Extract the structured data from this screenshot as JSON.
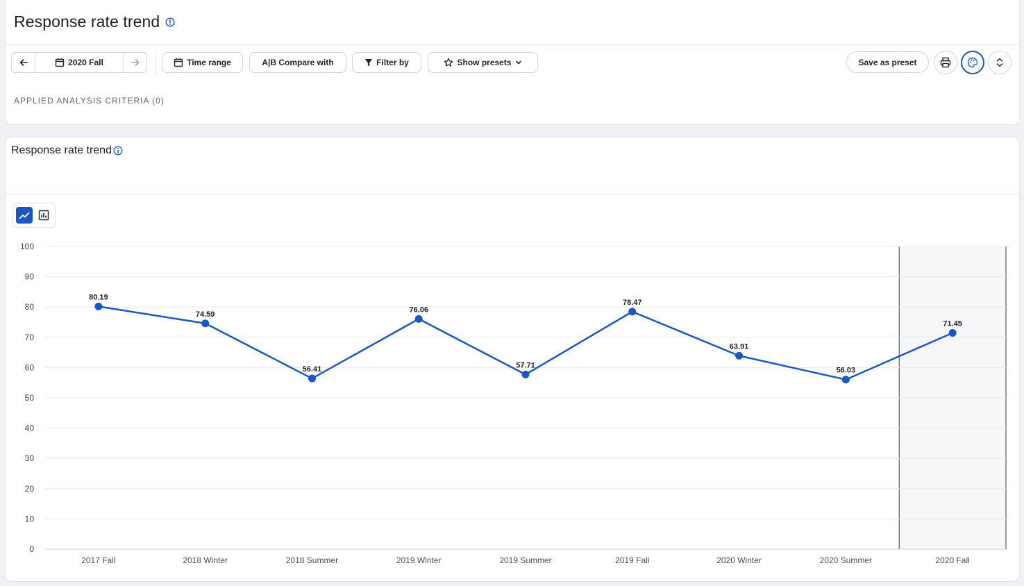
{
  "header": {
    "title": "Response rate trend"
  },
  "toolbar": {
    "period_label": "2020 Fall",
    "time_range_label": "Time range",
    "compare_label": "A|B Compare with",
    "filter_label": "Filter by",
    "presets_label": "Show presets",
    "save_preset_label": "Save as preset"
  },
  "criteria": {
    "label": "APPLIED ANALYSIS CRITERIA (0)"
  },
  "chart_card": {
    "title": "Response rate trend"
  },
  "icons": {
    "info": "info-icon",
    "back": "arrow-left-icon",
    "forward": "arrow-right-icon",
    "calendar": "calendar-icon",
    "filter": "filter-icon",
    "star": "star-icon",
    "chevron": "chevron-down-icon",
    "print": "print-icon",
    "palette": "palette-icon",
    "expand": "expand-collapse-icon",
    "line_chart": "line-chart-icon",
    "bar_chart": "bar-chart-icon"
  },
  "colors": {
    "accent": "#1a56c4",
    "highlight_fill": "#f6f7f9"
  },
  "chart_data": {
    "type": "line",
    "categories": [
      "2017 Fall",
      "2018 Winter",
      "2018 Summer",
      "2019 Winter",
      "2019 Summer",
      "2019 Fall",
      "2020 Winter",
      "2020 Summer",
      "2020 Fall"
    ],
    "values": [
      80.19,
      74.59,
      56.41,
      76.06,
      57.71,
      78.47,
      63.91,
      56.03,
      71.45
    ],
    "data_labels": [
      "80.19",
      "74.59",
      "56.41",
      "76.06",
      "57.71",
      "78.47",
      "63.91",
      "56.03",
      "71.45"
    ],
    "y_ticks": [
      "0",
      "10",
      "20",
      "30",
      "40",
      "50",
      "60",
      "70",
      "80",
      "90",
      "100"
    ],
    "ylim": [
      0,
      100
    ],
    "highlighted_category": "2020 Fall",
    "grid": true,
    "title": "",
    "xlabel": "",
    "ylabel": ""
  }
}
